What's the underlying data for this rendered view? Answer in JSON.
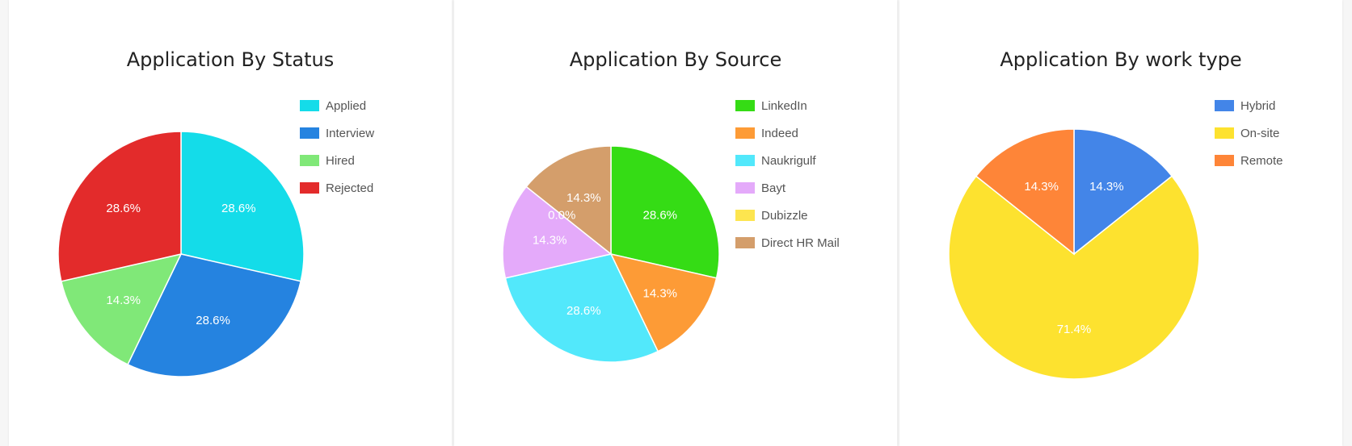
{
  "chart_data": [
    {
      "type": "pie",
      "title": "Application By Status",
      "slices": [
        {
          "label": "Applied",
          "value": 2,
          "percent_label": "28.6%",
          "color": "#14dce9"
        },
        {
          "label": "Interview",
          "value": 2,
          "percent_label": "28.6%",
          "color": "#2583e0"
        },
        {
          "label": "Hired",
          "value": 1,
          "percent_label": "14.3%",
          "color": "#80e878"
        },
        {
          "label": "Rejected",
          "value": 2,
          "percent_label": "28.6%",
          "color": "#e32b2b"
        }
      ],
      "legend_position": "top-right"
    },
    {
      "type": "pie",
      "title": "Application By Source",
      "slices": [
        {
          "label": "LinkedIn",
          "value": 2,
          "percent_label": "28.6%",
          "color": "#35dc15"
        },
        {
          "label": "Indeed",
          "value": 1,
          "percent_label": "14.3%",
          "color": "#fd9b36"
        },
        {
          "label": "Naukrigulf",
          "value": 2,
          "percent_label": "28.6%",
          "color": "#52e8fb"
        },
        {
          "label": "Bayt",
          "value": 1,
          "percent_label": "14.3%",
          "color": "#e4aafa"
        },
        {
          "label": "Dubizzle",
          "value": 0,
          "percent_label": "0.0%",
          "color": "#fde54f"
        },
        {
          "label": "Direct HR Mail",
          "value": 1,
          "percent_label": "14.3%",
          "color": "#d49e6b"
        }
      ],
      "legend_position": "top-right"
    },
    {
      "type": "pie",
      "title": "Application By work type",
      "slices": [
        {
          "label": "Hybrid",
          "value": 1,
          "percent_label": "14.3%",
          "color": "#4385e8"
        },
        {
          "label": "On-site",
          "value": 5,
          "percent_label": "71.4%",
          "color": "#fde22f"
        },
        {
          "label": "Remote",
          "value": 1,
          "percent_label": "14.3%",
          "color": "#fe8538"
        }
      ],
      "legend_position": "top-right"
    }
  ]
}
